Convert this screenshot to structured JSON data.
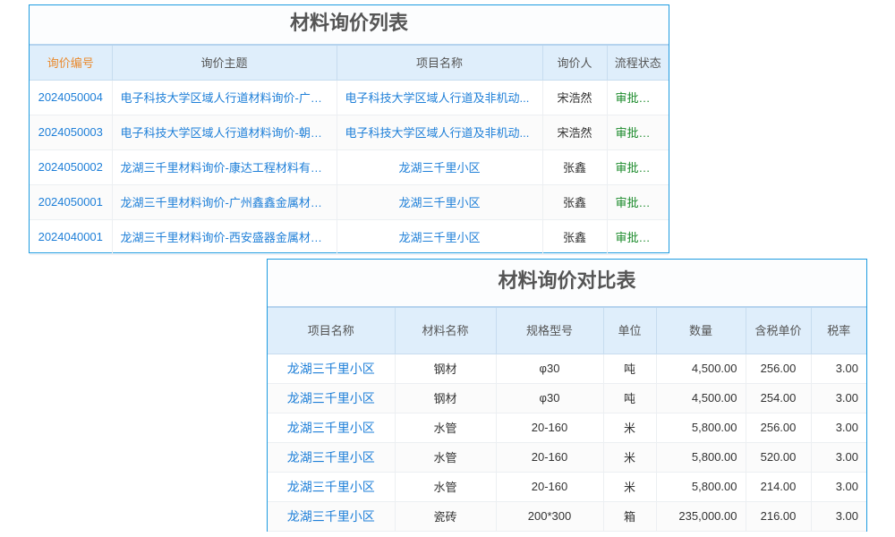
{
  "list_table": {
    "title": "材料询价列表",
    "headers": [
      "询价编号",
      "询价主题",
      "项目名称",
      "询价人",
      "流程状态"
    ],
    "rows": [
      [
        "2024050004",
        "电子科技大学区域人行道材料询价-广西...",
        "电子科技大学区域人行道及非机动...",
        "宋浩然",
        "审批通过"
      ],
      [
        "2024050003",
        "电子科技大学区域人行道材料询价-朝阳...",
        "电子科技大学区域人行道及非机动...",
        "宋浩然",
        "审批通过"
      ],
      [
        "2024050002",
        "龙湖三千里材料询价-康达工程材料有限...",
        "龙湖三千里小区",
        "张鑫",
        "审批通过"
      ],
      [
        "2024050001",
        "龙湖三千里材料询价-广州鑫鑫金属材料...",
        "龙湖三千里小区",
        "张鑫",
        "审批通过"
      ],
      [
        "2024040001",
        "龙湖三千里材料询价-西安盛器金属材料...",
        "龙湖三千里小区",
        "张鑫",
        "审批通过"
      ]
    ]
  },
  "compare_table": {
    "title": "材料询价对比表",
    "headers": [
      "项目名称",
      "材料名称",
      "规格型号",
      "单位",
      "数量",
      "含税单价",
      "税率"
    ],
    "rows": [
      [
        "龙湖三千里小区",
        "钢材",
        "φ30",
        "吨",
        "4,500.00",
        "256.00",
        "3.00"
      ],
      [
        "龙湖三千里小区",
        "钢材",
        "φ30",
        "吨",
        "4,500.00",
        "254.00",
        "3.00"
      ],
      [
        "龙湖三千里小区",
        "水管",
        "20-160",
        "米",
        "5,800.00",
        "256.00",
        "3.00"
      ],
      [
        "龙湖三千里小区",
        "水管",
        "20-160",
        "米",
        "5,800.00",
        "520.00",
        "3.00"
      ],
      [
        "龙湖三千里小区",
        "水管",
        "20-160",
        "米",
        "5,800.00",
        "214.00",
        "3.00"
      ],
      [
        "龙湖三千里小区",
        "瓷砖",
        "200*300",
        "箱",
        "235,000.00",
        "216.00",
        "3.00"
      ]
    ]
  },
  "colors": {
    "border": "#1e9be0",
    "link": "#1e7fd8",
    "status_ok": "#1a8a2a",
    "header_bg": "#dfeefb",
    "sort_header": "#e98a2e"
  }
}
